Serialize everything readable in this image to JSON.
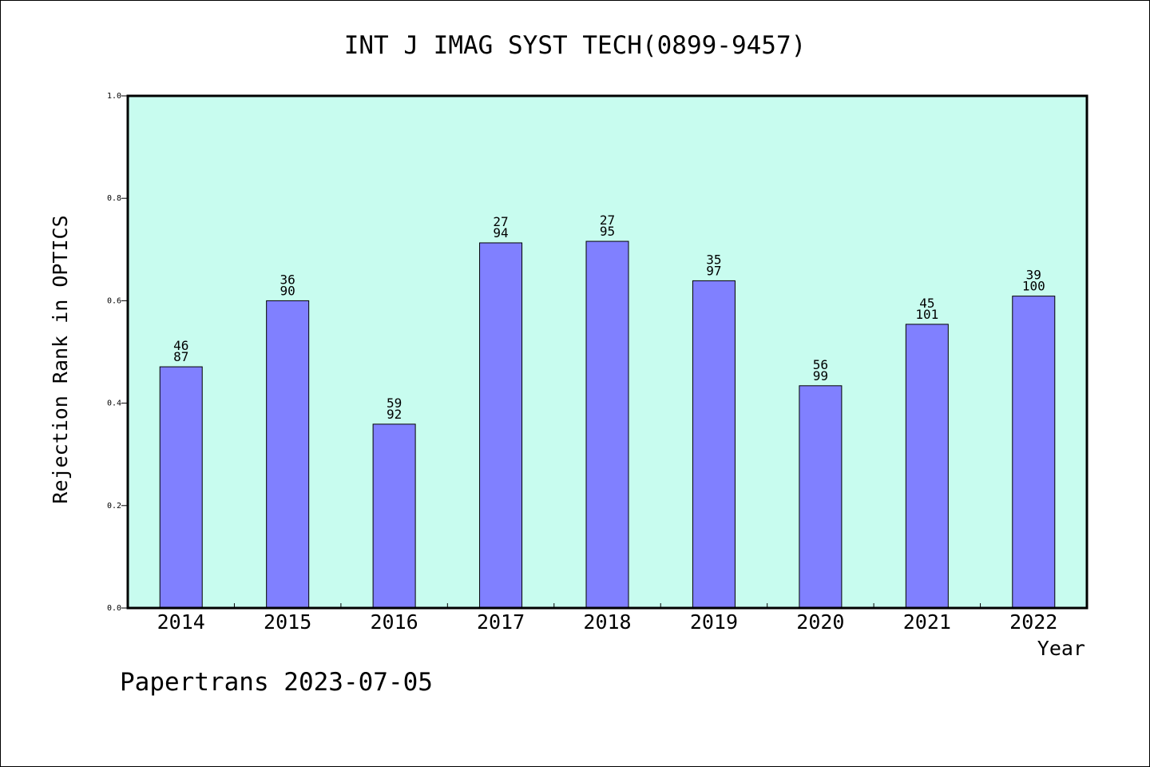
{
  "chart_data": {
    "type": "bar",
    "title": "INT J IMAG SYST TECH(0899-9457)",
    "xlabel": "Year",
    "ylabel": "Rejection Rank in OPTICS",
    "categories": [
      "2014",
      "2015",
      "2016",
      "2017",
      "2018",
      "2019",
      "2020",
      "2021",
      "2022"
    ],
    "values": [
      0.471,
      0.6,
      0.359,
      0.713,
      0.716,
      0.639,
      0.434,
      0.554,
      0.609
    ],
    "label_top": [
      "46",
      "36",
      "59",
      "27",
      "27",
      "35",
      "56",
      "45",
      "39"
    ],
    "label_bottom": [
      "87",
      "90",
      "92",
      "94",
      "95",
      "97",
      "99",
      "101",
      "100"
    ],
    "ylim": [
      0,
      1.0
    ],
    "yticks": [
      "0.0",
      "0.2",
      "0.4",
      "0.6",
      "0.8",
      "1.0"
    ],
    "grid": false,
    "colors": {
      "plot_background": "#c8fcef",
      "bar_fill": "#8080ff",
      "bar_stroke": "#000000"
    }
  },
  "footer": {
    "credit": "Papertrans 2023-07-05"
  }
}
